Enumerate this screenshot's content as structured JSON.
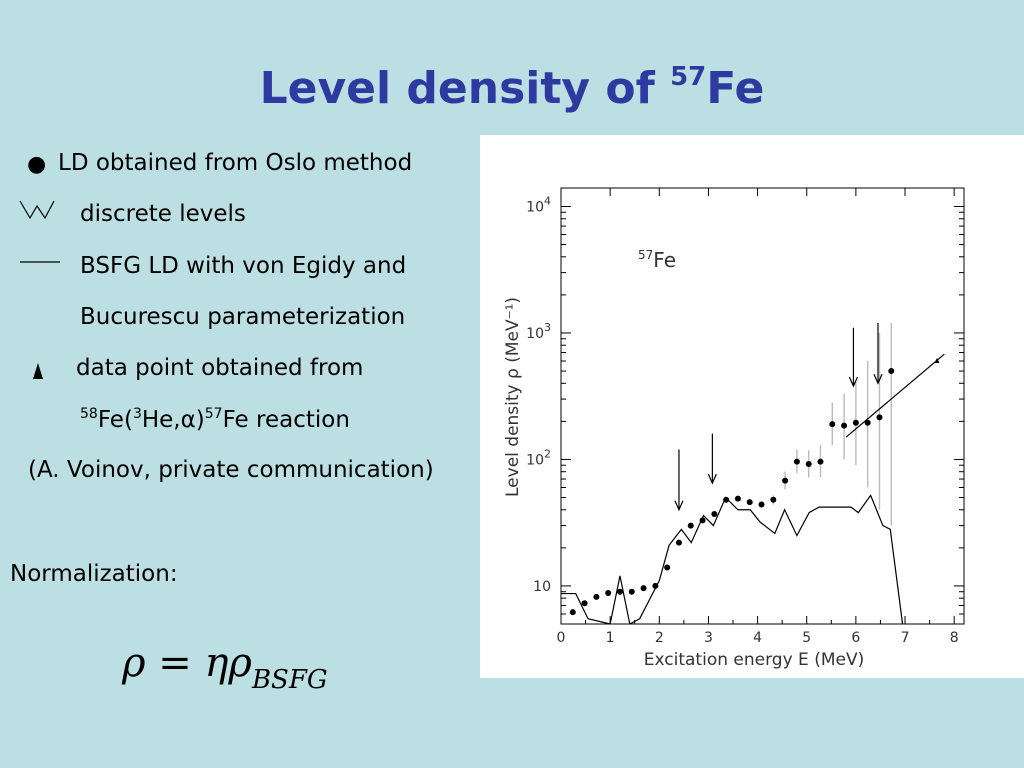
{
  "slide": {
    "title_main": "Level density of ",
    "title_sup": "57",
    "title_element": "Fe"
  },
  "legend": {
    "bullet_symbol": "●",
    "line1": "LD obtained from Oslo method",
    "line2": "discrete levels",
    "line3a": "BSFG LD with von Egidy and",
    "line3b": "Bucurescu parameterization",
    "line4a": "data point obtained from",
    "reaction": {
      "sup1": "58",
      "t1": "Fe(",
      "sup2": "3",
      "t2": "He,α)",
      "sup3": "57",
      "t3": "Fe reaction"
    },
    "line5": "(A. Voinov, private communication)"
  },
  "normalization": {
    "label": "Normalization:",
    "formula_main": "ρ = ηρ",
    "formula_sub": "BSFG"
  },
  "chart_data": {
    "type": "scatter",
    "y_scale": "log",
    "xlabel": "Excitation energy E (MeV)",
    "ylabel": "Level density ρ (MeV⁻¹)",
    "annotation_sup": "57",
    "annotation_text": "Fe",
    "xlim": [
      0,
      8.2
    ],
    "ylim": [
      5,
      14000
    ],
    "x_ticks": [
      "0",
      "1",
      "2",
      "3",
      "4",
      "5",
      "6",
      "7",
      "8"
    ],
    "y_ticks": [
      {
        "value": 10,
        "base": "10",
        "exp": ""
      },
      {
        "value": 100,
        "base": "10",
        "exp": "2"
      },
      {
        "value": 1000,
        "base": "10",
        "exp": "3"
      },
      {
        "value": 10000,
        "base": "10",
        "exp": "4"
      }
    ],
    "series": [
      {
        "kind": "points-with-errors",
        "points": [
          {
            "x": 0.24,
            "y": 6.2,
            "lo": 6.2,
            "hi": 6.2
          },
          {
            "x": 0.48,
            "y": 7.3,
            "lo": 7.3,
            "hi": 7.3
          },
          {
            "x": 0.72,
            "y": 8.2,
            "lo": 8.2,
            "hi": 8.2
          },
          {
            "x": 0.96,
            "y": 8.8,
            "lo": 8.8,
            "hi": 8.8
          },
          {
            "x": 1.2,
            "y": 9.0,
            "lo": 9.0,
            "hi": 9.0
          },
          {
            "x": 1.44,
            "y": 9.0,
            "lo": 9.0,
            "hi": 9.0
          },
          {
            "x": 1.68,
            "y": 9.6,
            "lo": 9.6,
            "hi": 9.6
          },
          {
            "x": 1.92,
            "y": 10.0,
            "lo": 10.0,
            "hi": 10.0
          },
          {
            "x": 2.16,
            "y": 14,
            "lo": 14,
            "hi": 14
          },
          {
            "x": 2.4,
            "y": 22,
            "lo": 22,
            "hi": 22
          },
          {
            "x": 2.64,
            "y": 30,
            "lo": 30,
            "hi": 30
          },
          {
            "x": 2.88,
            "y": 33,
            "lo": 33,
            "hi": 33
          },
          {
            "x": 3.12,
            "y": 37,
            "lo": 37,
            "hi": 37
          },
          {
            "x": 3.36,
            "y": 48,
            "lo": 48,
            "hi": 48
          },
          {
            "x": 3.6,
            "y": 49,
            "lo": 49,
            "hi": 49
          },
          {
            "x": 3.84,
            "y": 46,
            "lo": 46,
            "hi": 46
          },
          {
            "x": 4.08,
            "y": 44,
            "lo": 42,
            "hi": 46
          },
          {
            "x": 4.32,
            "y": 48,
            "lo": 44,
            "hi": 52
          },
          {
            "x": 4.56,
            "y": 68,
            "lo": 58,
            "hi": 80
          },
          {
            "x": 4.8,
            "y": 96,
            "lo": 78,
            "hi": 120
          },
          {
            "x": 5.04,
            "y": 92,
            "lo": 72,
            "hi": 118
          },
          {
            "x": 5.28,
            "y": 96,
            "lo": 72,
            "hi": 130
          },
          {
            "x": 5.52,
            "y": 190,
            "lo": 130,
            "hi": 280
          },
          {
            "x": 5.76,
            "y": 185,
            "lo": 100,
            "hi": 330
          },
          {
            "x": 6.0,
            "y": 195,
            "lo": 90,
            "hi": 420
          },
          {
            "x": 6.24,
            "y": 195,
            "lo": 60,
            "hi": 600
          },
          {
            "x": 6.48,
            "y": 215,
            "lo": 40,
            "hi": 1000
          },
          {
            "x": 6.72,
            "y": 500,
            "lo": 30,
            "hi": 1200
          }
        ]
      },
      {
        "kind": "discrete-levels-step",
        "points": [
          [
            0,
            8.7
          ],
          [
            0.3,
            8.7
          ],
          [
            0.55,
            5.5
          ],
          [
            1.0,
            5.0
          ],
          [
            1.2,
            12
          ],
          [
            1.4,
            5.0
          ],
          [
            1.6,
            5.5
          ],
          [
            2.0,
            11
          ],
          [
            2.2,
            21
          ],
          [
            2.45,
            28
          ],
          [
            2.65,
            22
          ],
          [
            2.9,
            36
          ],
          [
            3.1,
            30
          ],
          [
            3.35,
            50
          ],
          [
            3.6,
            40
          ],
          [
            3.85,
            40
          ],
          [
            4.05,
            32
          ],
          [
            4.35,
            26
          ],
          [
            4.55,
            40
          ],
          [
            4.8,
            25
          ],
          [
            5.05,
            38
          ],
          [
            5.25,
            42
          ],
          [
            5.6,
            42
          ],
          [
            5.9,
            42
          ],
          [
            6.05,
            38
          ],
          [
            6.3,
            52
          ],
          [
            6.55,
            30
          ],
          [
            6.7,
            28
          ],
          [
            6.95,
            5
          ]
        ]
      },
      {
        "kind": "bsfg-line",
        "points": [
          [
            5.8,
            150
          ],
          [
            7.8,
            680
          ]
        ]
      },
      {
        "kind": "voinov-point",
        "points": [
          [
            7.65,
            600
          ]
        ]
      }
    ],
    "arrows": [
      {
        "x": 2.4,
        "y_top": 120,
        "y_bottom": 40
      },
      {
        "x": 3.08,
        "y_top": 160,
        "y_bottom": 65
      },
      {
        "x": 5.95,
        "y_top": 1100,
        "y_bottom": 380
      },
      {
        "x": 6.45,
        "y_top": 1200,
        "y_bottom": 400
      }
    ]
  }
}
